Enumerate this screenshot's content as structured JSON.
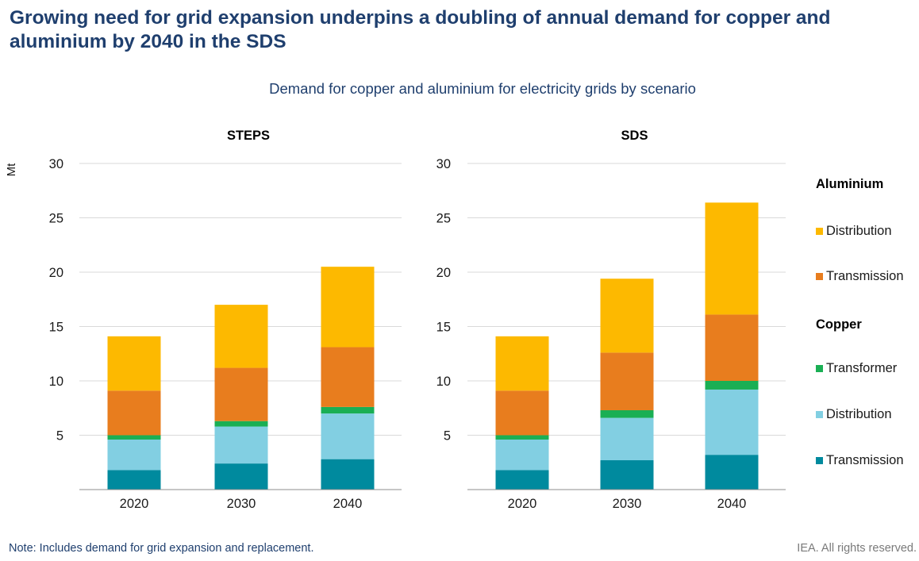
{
  "title": "Growing need for grid expansion underpins a doubling of annual demand for copper and aluminium by 2040 in the SDS",
  "subtitle": "Demand for copper and aluminium for electricity grids by scenario",
  "note": "Note: Includes demand for grid expansion and replacement.",
  "rights": "IEA. All rights reserved.",
  "legend": {
    "groups": [
      {
        "label": "Aluminium",
        "items": [
          {
            "label": "Distribution",
            "color": "#fdb900"
          },
          {
            "label": "Transmission",
            "color": "#e87d1e"
          }
        ]
      },
      {
        "label": "Copper",
        "items": [
          {
            "label": "Transformer",
            "color": "#1aaf54"
          },
          {
            "label": "Distribution",
            "color": "#82cfe2"
          },
          {
            "label": "Transmission",
            "color": "#008a9e"
          }
        ]
      }
    ]
  },
  "chart_data": [
    {
      "type": "bar",
      "stacked": true,
      "title": "STEPS",
      "ylabel": "Mt",
      "ylim": [
        0,
        30
      ],
      "yticks": [
        5,
        10,
        15,
        20,
        25,
        30
      ],
      "categories": [
        "2020",
        "2030",
        "2040"
      ],
      "series": [
        {
          "group": "Copper",
          "name": "Transmission",
          "color": "#008a9e",
          "values": [
            1.8,
            2.4,
            2.8
          ]
        },
        {
          "group": "Copper",
          "name": "Distribution",
          "color": "#82cfe2",
          "values": [
            2.8,
            3.4,
            4.2
          ]
        },
        {
          "group": "Copper",
          "name": "Transformer",
          "color": "#1aaf54",
          "values": [
            0.4,
            0.5,
            0.6
          ]
        },
        {
          "group": "Aluminium",
          "name": "Transmission",
          "color": "#e87d1e",
          "values": [
            4.1,
            4.9,
            5.5
          ]
        },
        {
          "group": "Aluminium",
          "name": "Distribution",
          "color": "#fdb900",
          "values": [
            5.0,
            5.8,
            7.4
          ]
        }
      ]
    },
    {
      "type": "bar",
      "stacked": true,
      "title": "SDS",
      "ylim": [
        0,
        30
      ],
      "yticks": [
        5,
        10,
        15,
        20,
        25,
        30
      ],
      "categories": [
        "2020",
        "2030",
        "2040"
      ],
      "series": [
        {
          "group": "Copper",
          "name": "Transmission",
          "color": "#008a9e",
          "values": [
            1.8,
            2.7,
            3.2
          ]
        },
        {
          "group": "Copper",
          "name": "Distribution",
          "color": "#82cfe2",
          "values": [
            2.8,
            3.9,
            6.0
          ]
        },
        {
          "group": "Copper",
          "name": "Transformer",
          "color": "#1aaf54",
          "values": [
            0.4,
            0.7,
            0.8
          ]
        },
        {
          "group": "Aluminium",
          "name": "Transmission",
          "color": "#e87d1e",
          "values": [
            4.1,
            5.3,
            6.1
          ]
        },
        {
          "group": "Aluminium",
          "name": "Distribution",
          "color": "#fdb900",
          "values": [
            5.0,
            6.8,
            10.3
          ]
        }
      ]
    }
  ]
}
